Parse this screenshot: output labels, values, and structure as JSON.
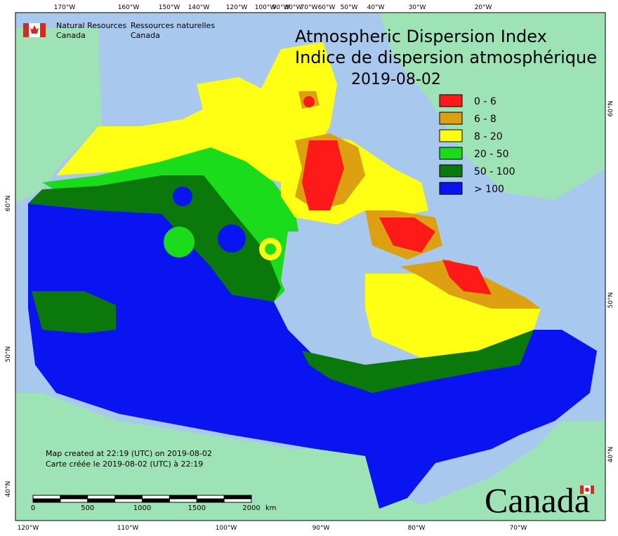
{
  "agency": {
    "en": [
      "Natural Resources",
      "Canada"
    ],
    "fr": [
      "Ressources naturelles",
      "Canada"
    ]
  },
  "title": {
    "en": "Atmospheric Dispersion Index",
    "fr": "Indice de dispersion atmosphérique",
    "date": "2019-08-02"
  },
  "legend": [
    {
      "label": "0 - 6",
      "color": "#ff1a1a"
    },
    {
      "label": "6 - 8",
      "color": "#dda010"
    },
    {
      "label": "8 - 20",
      "color": "#ffff14"
    },
    {
      "label": "20 - 50",
      "color": "#1adc1a"
    },
    {
      "label": "50 - 100",
      "color": "#0a780a"
    },
    {
      "label": "> 100",
      "color": "#0a14f0"
    }
  ],
  "graticule": {
    "top": [
      "170°W",
      "160°W",
      "150°W",
      "140°W",
      "120°W",
      "100°W",
      "90°W",
      "80°W",
      "70°W",
      "60°W",
      "50°W",
      "40°W",
      "30°W",
      "20°W"
    ],
    "bottom": [
      "120°W",
      "110°W",
      "100°W",
      "90°W",
      "80°W",
      "70°W"
    ],
    "left": [
      "60°N",
      "50°N",
      "40°N"
    ],
    "right": [
      "60°N",
      "50°N",
      "40°N"
    ]
  },
  "notes": [
    "Map created at 22:19 (UTC) on 2019-08-02",
    "Carte créée le 2019-08-02 (UTC) à 22:19"
  ],
  "scale_bar": {
    "labels": [
      "0",
      "500",
      "1000",
      "1500",
      "2000"
    ],
    "unit": "km"
  },
  "wordmark": "Canada"
}
